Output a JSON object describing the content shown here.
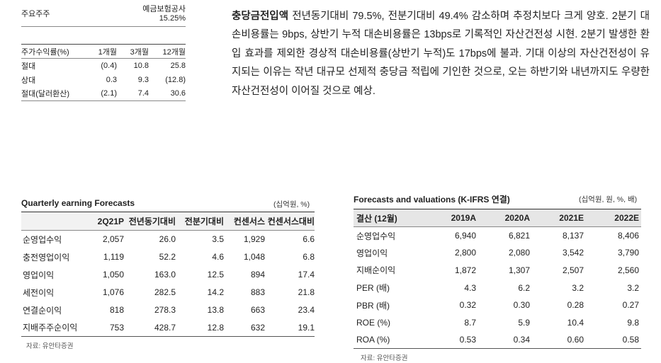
{
  "shareholder": {
    "label": "주요주주",
    "name": "예금보험공사",
    "pct": "15.25%"
  },
  "returns": {
    "headers": [
      "주가수익률(%)",
      "1개월",
      "3개월",
      "12개월"
    ],
    "rows": [
      [
        "절대",
        "(0.4)",
        "10.8",
        "25.8"
      ],
      [
        "상대",
        "0.3",
        "9.3",
        "(12.8)"
      ],
      [
        "절대(달러환산)",
        "(2.1)",
        "7.4",
        "30.6"
      ]
    ]
  },
  "paragraph": {
    "bold": "충당금전입액",
    "text": " 전년동기대비 79.5%, 전분기대비 49.4% 감소하며 추정치보다 크게 양호. 2분기 대손비용률는 9bps, 상반기 누적 대손비용률은 13bps로 기록적인 자산건전성 시현. 2분기 발생한 환입 효과를 제외한 경상적 대손비용률(상반기 누적)도 17bps에 불과. 기대 이상의 자산건전성이 유지되는 이유는 작년 대규모 선제적 충당금 적립에 기인한 것으로, 오는 하반기와 내년까지도 우량한 자산건전성이 이어질 것으로 예상."
  },
  "quarterly": {
    "title": "Quarterly earning Forecasts",
    "unit": "(십억원, %)",
    "headers": [
      "",
      "2Q21P",
      "전년동기대비",
      "전분기대비",
      "컨센서스",
      "컨센서스대비"
    ],
    "rows": [
      [
        "순영업수익",
        "2,057",
        "26.0",
        "3.5",
        "1,929",
        "6.6"
      ],
      [
        "충전영업이익",
        "1,119",
        "52.2",
        "4.6",
        "1,048",
        "6.8"
      ],
      [
        "영업이익",
        "1,050",
        "163.0",
        "12.5",
        "894",
        "17.4"
      ],
      [
        "세전이익",
        "1,076",
        "282.5",
        "14.2",
        "883",
        "21.8"
      ],
      [
        "연결순이익",
        "818",
        "278.3",
        "13.8",
        "663",
        "23.4"
      ],
      [
        "지배주주순이익",
        "753",
        "428.7",
        "12.8",
        "632",
        "19.1"
      ]
    ],
    "source": "자료: 유안타증권"
  },
  "forecasts": {
    "title": "Forecasts and valuations (K-IFRS 연결)",
    "unit": "(십억원, 원, %, 배)",
    "headers": [
      "결산 (12월)",
      "2019A",
      "2020A",
      "2021E",
      "2022E"
    ],
    "rows": [
      [
        "순영업수익",
        "6,940",
        "6,821",
        "8,137",
        "8,406"
      ],
      [
        "영업이익",
        "2,800",
        "2,080",
        "3,542",
        "3,790"
      ],
      [
        "지배순이익",
        "1,872",
        "1,307",
        "2,507",
        "2,560"
      ],
      [
        "PER (배)",
        "4.3",
        "6.2",
        "3.2",
        "3.2"
      ],
      [
        "PBR (배)",
        "0.32",
        "0.30",
        "0.28",
        "0.27"
      ],
      [
        "ROE (%)",
        "8.7",
        "5.9",
        "10.4",
        "9.8"
      ],
      [
        "ROA (%)",
        "0.53",
        "0.34",
        "0.60",
        "0.58"
      ]
    ],
    "source": "자료: 유안타증권"
  }
}
